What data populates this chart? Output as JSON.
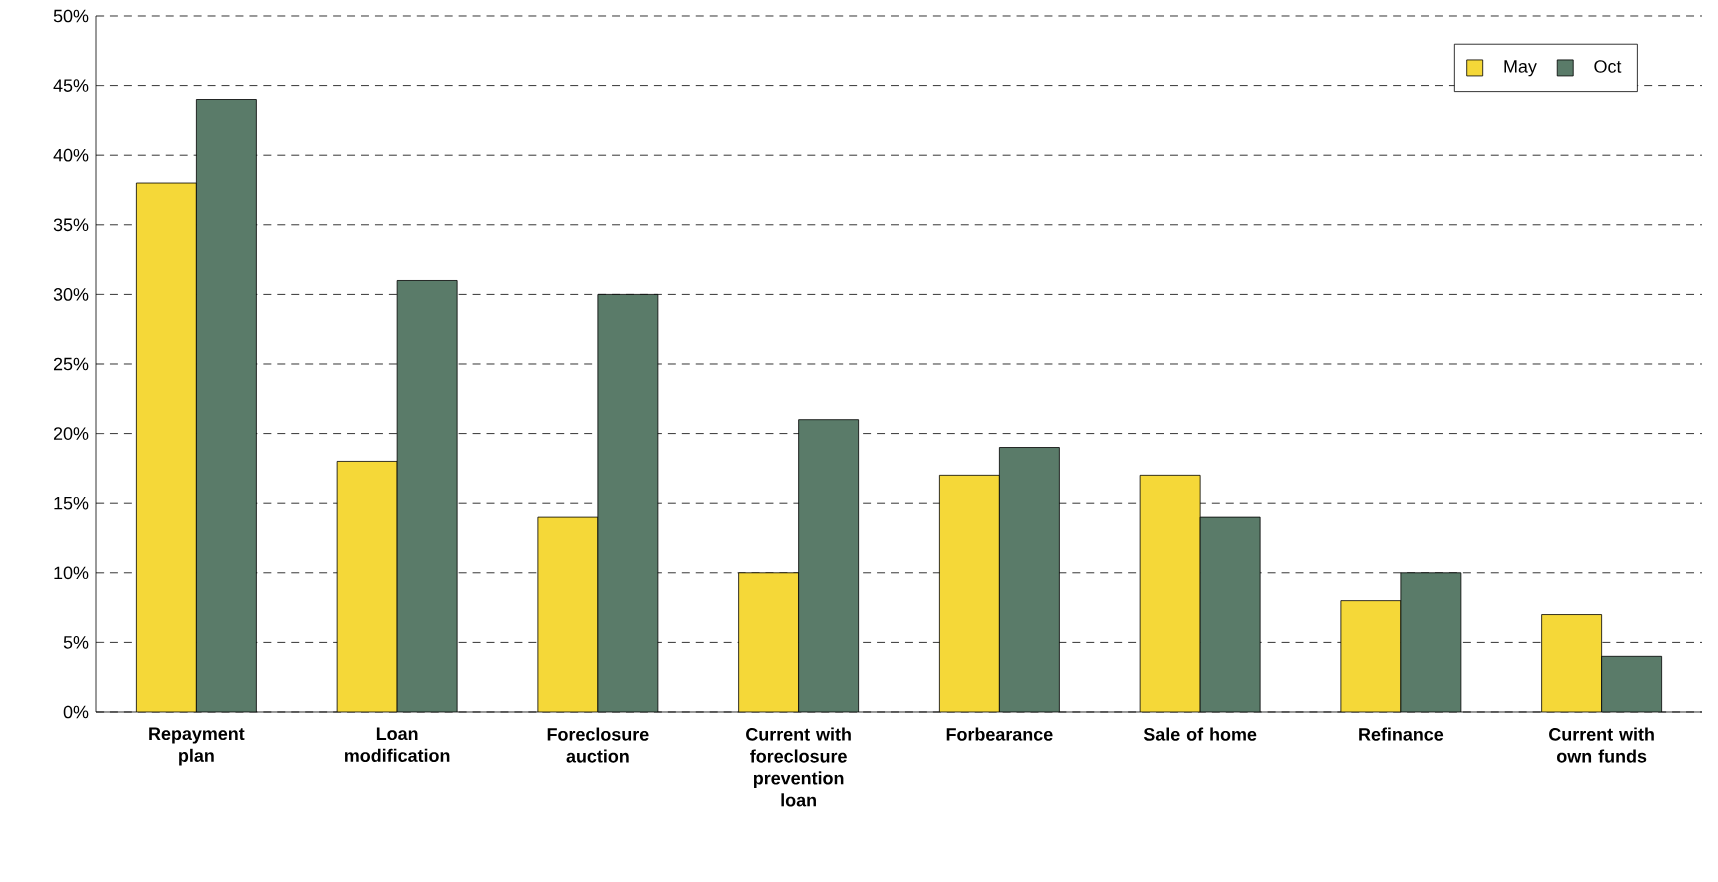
{
  "chart_data": {
    "type": "bar",
    "categories": [
      "Repayment plan",
      "Loan modification",
      "Foreclosure auction",
      "Current with foreclosure prevention loan",
      "Forbearance",
      "Sale of home",
      "Refinance",
      "Current with own funds"
    ],
    "series": [
      {
        "name": "May",
        "color": "#f5d838",
        "values": [
          38,
          18,
          14,
          10,
          17,
          17,
          8,
          7
        ]
      },
      {
        "name": "Oct",
        "color": "#5a7b69",
        "values": [
          44,
          31,
          30,
          21,
          19,
          14,
          10,
          4
        ]
      }
    ],
    "ylim": [
      0,
      50
    ],
    "yticks": [
      {
        "value": 0,
        "label": "0%"
      },
      {
        "value": 5,
        "label": "5%"
      },
      {
        "value": 10,
        "label": "10%"
      },
      {
        "value": 15,
        "label": "15%"
      },
      {
        "value": 20,
        "label": "20%"
      },
      {
        "value": 25,
        "label": "25%"
      },
      {
        "value": 30,
        "label": "30%"
      },
      {
        "value": 35,
        "label": "35%"
      },
      {
        "value": 40,
        "label": "40%"
      },
      {
        "value": 45,
        "label": "45%"
      },
      {
        "value": 50,
        "label": "50%"
      }
    ],
    "grid": "y",
    "legend": "top right"
  }
}
